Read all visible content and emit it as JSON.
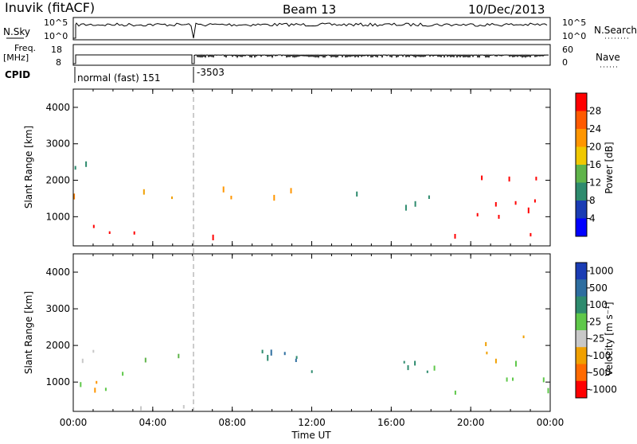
{
  "header": {
    "station": "Inuvik (fitACF)",
    "beam": "Beam 13",
    "date": "10/Dec/2013"
  },
  "top_panels": {
    "nsky_label": "N.Sky",
    "nsky_ticks": [
      "10^5",
      "10^0"
    ],
    "nsearch_label": "N.Search",
    "nsearch_ticks": [
      "10^5",
      "10^0"
    ],
    "freq_label": "Freq.",
    "freq_unit": "[MHz]",
    "freq_ticks": [
      "18",
      "8"
    ],
    "nave_label": "Nave",
    "nave_ticks": [
      "60",
      "0"
    ],
    "cpid_label": "CPID",
    "cpid_segments": [
      "normal (fast) 151",
      "-3503"
    ]
  },
  "x_axis": {
    "label": "Time UT",
    "ticks": [
      "00:00",
      "04:00",
      "08:00",
      "12:00",
      "16:00",
      "20:00",
      "00:00"
    ]
  },
  "chart_data": [
    {
      "type": "heatmap",
      "panel": "power",
      "ylabel": "Slant Range [km]",
      "x_range_hours": [
        0,
        24
      ],
      "ylim": [
        200,
        4500
      ],
      "yticks": [
        "1000",
        "2000",
        "3000",
        "4000"
      ],
      "colorbar_label": "Power [dB]",
      "colorbar_ticks": [
        "28",
        "24",
        "20",
        "16",
        "12",
        "8",
        "4"
      ],
      "colorbar_colors": [
        "#ff0000",
        "#ff5a00",
        "#ff9600",
        "#f0c800",
        "#5fb44a",
        "#2e8b6e",
        "#1a3cb4",
        "#0000ff"
      ],
      "scatter_regions": [
        {
          "t": [
            0.0,
            2.8
          ],
          "r": [
            500,
            1300
          ],
          "color": "#ff0000"
        },
        {
          "t": [
            0.0,
            2.8
          ],
          "r": [
            1300,
            1700
          ],
          "color": "#f07800"
        },
        {
          "t": [
            0.0,
            1.5
          ],
          "r": [
            1700,
            2600
          ],
          "color": "#2e8b6e"
        },
        {
          "t": [
            3.0,
            6.0
          ],
          "r": [
            250,
            600
          ],
          "color": "#ff0000"
        },
        {
          "t": [
            3.0,
            6.0
          ],
          "r": [
            1300,
            1900
          ],
          "color": "#f0a000"
        },
        {
          "t": [
            6.0,
            10.0
          ],
          "r": [
            250,
            550
          ],
          "color": "#ff0000"
        },
        {
          "t": [
            6.0,
            12.0
          ],
          "r": [
            1300,
            1900
          ],
          "color": "#ff9600"
        },
        {
          "t": [
            13.5,
            18.0
          ],
          "r": [
            1100,
            1800
          ],
          "color": "#2e8b6e"
        },
        {
          "t": [
            18.0,
            24.0
          ],
          "r": [
            500,
            1700
          ],
          "color": "#ff0000"
        },
        {
          "t": [
            19.5,
            23.5
          ],
          "r": [
            1700,
            2400
          ],
          "color": "#ff0000"
        }
      ]
    },
    {
      "type": "heatmap",
      "panel": "velocity",
      "ylabel": "Slant Range [km]",
      "x_range_hours": [
        0,
        24
      ],
      "ylim": [
        200,
        4500
      ],
      "yticks": [
        "1000",
        "2000",
        "3000",
        "4000"
      ],
      "colorbar_label": "Velocity [m s⁻¹]",
      "colorbar_ticks": [
        "1000",
        "500",
        "100",
        "25",
        "-25",
        "-100",
        "-500",
        "-1000"
      ],
      "colorbar_colors": [
        "#1a3cb4",
        "#2e6ea0",
        "#2e8b6e",
        "#5fc84a",
        "#c8c8c8",
        "#f0a000",
        "#ff6a00",
        "#ff0000"
      ],
      "scatter_regions": [
        {
          "t": [
            0.0,
            2.8
          ],
          "r": [
            700,
            1600
          ],
          "color": "#5fc84a"
        },
        {
          "t": [
            0.0,
            2.8
          ],
          "r": [
            1600,
            2300
          ],
          "color": "#c8c8c8"
        },
        {
          "t": [
            0.0,
            2.8
          ],
          "r": [
            800,
            1300
          ],
          "color": "#ff9600"
        },
        {
          "t": [
            3.0,
            6.0
          ],
          "r": [
            250,
            700
          ],
          "color": "#c8c8c8"
        },
        {
          "t": [
            3.0,
            6.0
          ],
          "r": [
            1300,
            1900
          ],
          "color": "#5fb44a"
        },
        {
          "t": [
            6.0,
            12.0
          ],
          "r": [
            1300,
            1900
          ],
          "color": "#2e8b6e"
        },
        {
          "t": [
            9.0,
            12.0
          ],
          "r": [
            1200,
            2000
          ],
          "color": "#2e6ea0"
        },
        {
          "t": [
            13.5,
            18.0
          ],
          "r": [
            1100,
            1800
          ],
          "color": "#2e8b6e"
        },
        {
          "t": [
            18.0,
            24.0
          ],
          "r": [
            500,
            1600
          ],
          "color": "#5fc84a"
        },
        {
          "t": [
            19.5,
            23.5
          ],
          "r": [
            1600,
            2400
          ],
          "color": "#f0a000"
        }
      ]
    }
  ]
}
